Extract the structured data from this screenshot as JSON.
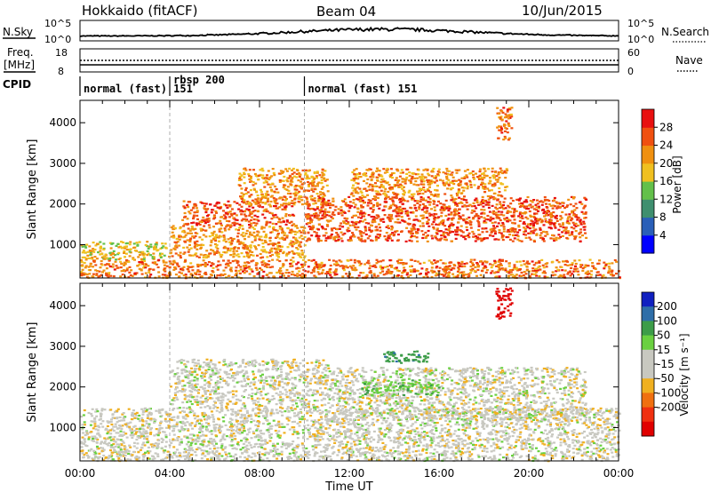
{
  "header": {
    "title": "Hokkaido (fitACF)",
    "beam": "Beam 04",
    "date": "10/Jun/2015"
  },
  "noise_panel": {
    "left_label": "N.Sky",
    "right_label": "N.Search",
    "left_top": "10^5",
    "left_bottom": "10^0",
    "right_top": "10^5",
    "right_bottom": "10^0"
  },
  "freq_panel": {
    "left_label_1": "Freq.",
    "left_label_2": "[MHz]",
    "right_label": "Nave",
    "left_top": "18",
    "left_bottom": "8",
    "right_top": "60",
    "right_bottom": "0"
  },
  "cpid_panel": {
    "label": "CPID",
    "modes": [
      {
        "text": "normal (fast) 151",
        "start": 0.0
      },
      {
        "text": "rbsp 200",
        "start": 4.0
      },
      {
        "text": "normal (fast) 151",
        "start": 10.0
      }
    ]
  },
  "chart_data": [
    {
      "type": "heatmap",
      "panel": "power",
      "ylabel": "Slant Range [km]",
      "ylim": [
        180,
        4550
      ],
      "xlim": [
        0,
        24
      ],
      "yticks": [
        "1000",
        "2000",
        "3000",
        "4000"
      ],
      "colorbar_label": "Power [dB]",
      "colorbar_ticks": [
        "4",
        "8",
        "12",
        "16",
        "20",
        "24",
        "28"
      ],
      "colors": [
        "#0000ff",
        "#2a5fb8",
        "#3f8f6f",
        "#63c04a",
        "#f0c020",
        "#f09010",
        "#f05010",
        "#e81010"
      ],
      "regions": [
        {
          "t0": 0.0,
          "t1": 24.0,
          "r0": 200,
          "r1": 650,
          "value": 24
        },
        {
          "t0": 0.0,
          "t1": 4.0,
          "r0": 650,
          "r1": 1100,
          "value": 18
        },
        {
          "t0": 4.0,
          "t1": 10.0,
          "r0": 700,
          "r1": 1500,
          "value": 22
        },
        {
          "t0": 4.5,
          "t1": 9.5,
          "r0": 1500,
          "r1": 2100,
          "value": 26
        },
        {
          "t0": 7.0,
          "t1": 11.0,
          "r0": 2000,
          "r1": 2900,
          "value": 22
        },
        {
          "t0": 10.0,
          "t1": 22.5,
          "r0": 1100,
          "r1": 2200,
          "value": 26
        },
        {
          "t0": 12.0,
          "t1": 19.0,
          "r0": 2200,
          "r1": 2900,
          "value": 22
        },
        {
          "t0": 18.5,
          "t1": 19.2,
          "r0": 3600,
          "r1": 4400,
          "value": 24
        }
      ]
    },
    {
      "type": "heatmap",
      "panel": "velocity",
      "ylabel": "Slant Range [km]",
      "xlabel": "Time UT",
      "ylim": [
        180,
        4550
      ],
      "xlim": [
        0,
        24
      ],
      "yticks": [
        "1000",
        "2000",
        "3000",
        "4000"
      ],
      "xticks": [
        "00:00",
        "04:00",
        "08:00",
        "12:00",
        "16:00",
        "20:00",
        "00:00"
      ],
      "colorbar_label": "Velocity [m s⁻¹]",
      "colorbar_ticks": [
        "200",
        "100",
        "50",
        "15",
        "-15",
        "-50",
        "-100",
        "-200"
      ],
      "colors": [
        "#1020c0",
        "#2e6ea8",
        "#3c9c48",
        "#6ad040",
        "#c8c8c0",
        "#c8c8c0",
        "#f0b020",
        "#f07010",
        "#f03010",
        "#e00000"
      ],
      "regions": [
        {
          "t0": 0.0,
          "t1": 24.0,
          "r0": 200,
          "r1": 1500,
          "value": 0
        },
        {
          "t0": 4.0,
          "t1": 11.0,
          "r0": 1500,
          "r1": 2700,
          "value": 0
        },
        {
          "t0": 11.0,
          "t1": 22.5,
          "r0": 1200,
          "r1": 2500,
          "value": 0
        },
        {
          "t0": 13.5,
          "t1": 15.5,
          "r0": 2600,
          "r1": 2900,
          "value": 60
        },
        {
          "t0": 12.5,
          "t1": 16.0,
          "r0": 1800,
          "r1": 2200,
          "value": 30
        },
        {
          "t0": 18.5,
          "t1": 19.2,
          "r0": 3700,
          "r1": 4450,
          "value": -200
        }
      ]
    }
  ]
}
